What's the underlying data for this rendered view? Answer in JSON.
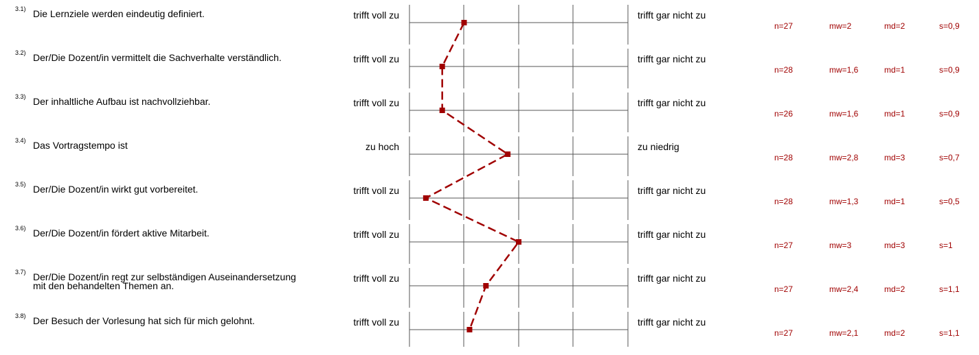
{
  "chart_data": {
    "type": "line",
    "scale_min": 1,
    "scale_max": 5,
    "items": [
      {
        "num": "3.1)",
        "question": "Die Lernziele werden eindeutig definiert.",
        "left": "trifft voll zu",
        "right": "trifft gar nicht zu",
        "n": "n=27",
        "mw": "mw=2",
        "md": "md=2",
        "s": "s=0,9",
        "value": 2
      },
      {
        "num": "3.2)",
        "question": "Der/Die Dozent/in vermittelt die Sachverhalte verständlich.",
        "left": "trifft voll zu",
        "right": "trifft gar nicht zu",
        "n": "n=28",
        "mw": "mw=1,6",
        "md": "md=1",
        "s": "s=0,9",
        "value": 1.6
      },
      {
        "num": "3.3)",
        "question": "Der inhaltliche Aufbau ist nachvollziehbar.",
        "left": "trifft voll zu",
        "right": "trifft gar nicht zu",
        "n": "n=26",
        "mw": "mw=1,6",
        "md": "md=1",
        "s": "s=0,9",
        "value": 1.6
      },
      {
        "num": "3.4)",
        "question": "Das Vortragstempo ist",
        "left": "zu hoch",
        "right": "zu niedrig",
        "n": "n=28",
        "mw": "mw=2,8",
        "md": "md=3",
        "s": "s=0,7",
        "value": 2.8
      },
      {
        "num": "3.5)",
        "question": "Der/Die Dozent/in wirkt gut vorbereitet.",
        "left": "trifft voll zu",
        "right": "trifft gar nicht zu",
        "n": "n=28",
        "mw": "mw=1,3",
        "md": "md=1",
        "s": "s=0,5",
        "value": 1.3
      },
      {
        "num": "3.6)",
        "question": "Der/Die Dozent/in fördert aktive Mitarbeit.",
        "left": "trifft voll zu",
        "right": "trifft gar nicht zu",
        "n": "n=27",
        "mw": "mw=3",
        "md": "md=3",
        "s": "s=1",
        "value": 3
      },
      {
        "num": "3.7)",
        "question": "Der/Die Dozent/in regt zur selbständigen Auseinandersetzung mit den behandelten Themen an.",
        "left": "trifft voll zu",
        "right": "trifft gar nicht zu",
        "n": "n=27",
        "mw": "mw=2,4",
        "md": "md=2",
        "s": "s=1,1",
        "value": 2.4
      },
      {
        "num": "3.8)",
        "question": "Der Besuch der Vorlesung hat sich für mich gelohnt.",
        "left": "trifft voll zu",
        "right": "trifft gar nicht zu",
        "n": "n=27",
        "mw": "mw=2,1",
        "md": "md=2",
        "s": "s=1,1",
        "value": 2.1
      }
    ],
    "line_color": "#a00000",
    "grid_color": "#555555"
  }
}
